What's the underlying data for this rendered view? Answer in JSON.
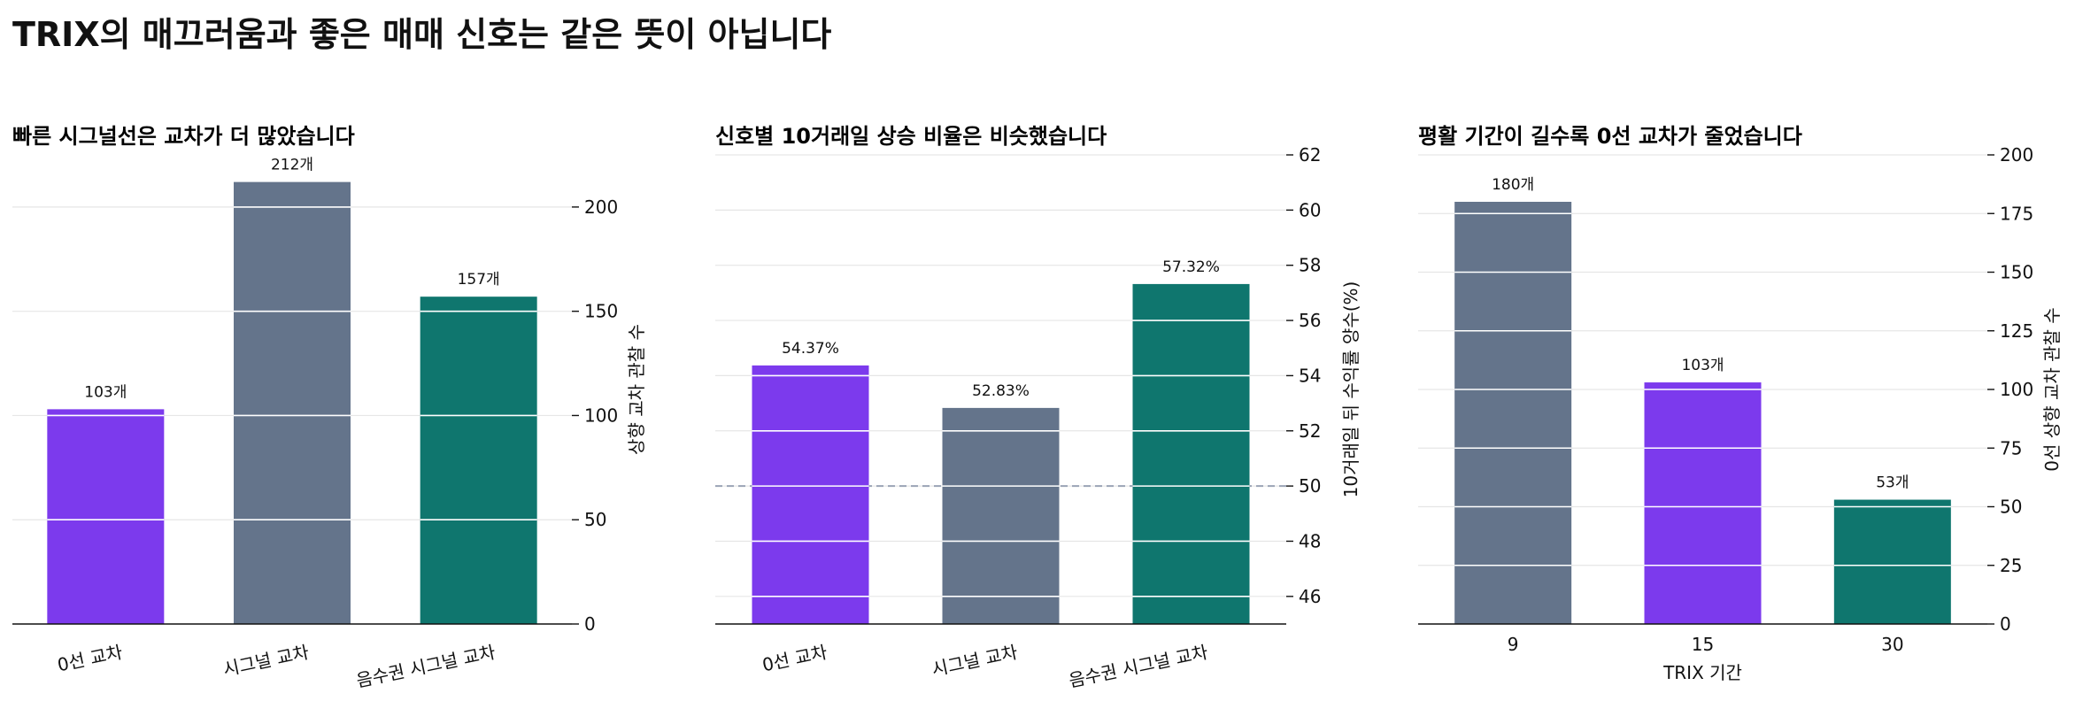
{
  "title": "TRIX의 매끄러움과 좋은 매매 신호는 같은 뜻이 아닙니다",
  "colors": {
    "purple": "#7c3aed",
    "slate": "#64748b",
    "teal": "#0f766e",
    "grid": "#e6e6e6",
    "reference": "#9aa3b5"
  },
  "chart_data": [
    {
      "type": "bar",
      "title": "빠른 시그널선은 교차가 더 많았습니다",
      "categories": [
        "0선 교차",
        "시그널 교차",
        "음수권 시그널 교차"
      ],
      "values": [
        103,
        212,
        157
      ],
      "value_labels": [
        "103개",
        "212개",
        "157개"
      ],
      "colors": [
        "#7c3aed",
        "#64748b",
        "#0f766e"
      ],
      "ylabel": "상향 교차 관찰 수",
      "xlabel": "",
      "ylim": [
        0,
        225
      ],
      "yticks": [
        0,
        50,
        100,
        150,
        200
      ],
      "y_axis_side": "right",
      "grid": true,
      "rotated_categories": true
    },
    {
      "type": "bar",
      "title": "신호별 10거래일 상승 비율은 비슷했습니다",
      "categories": [
        "0선 교차",
        "시그널 교차",
        "음수권 시그널 교차"
      ],
      "values": [
        54.37,
        52.83,
        57.32
      ],
      "value_labels": [
        "54.37%",
        "52.83%",
        "57.32%"
      ],
      "colors": [
        "#7c3aed",
        "#64748b",
        "#0f766e"
      ],
      "ylabel": "10거래일 뒤 수익률 양수(%)",
      "xlabel": "",
      "ylim": [
        45,
        62
      ],
      "yticks": [
        46,
        48,
        50,
        52,
        54,
        56,
        58,
        60,
        62
      ],
      "reference_line": 50,
      "y_axis_side": "right",
      "grid": true,
      "rotated_categories": true
    },
    {
      "type": "bar",
      "title": "평활 기간이 길수록 0선 교차가 줄었습니다",
      "categories": [
        "9",
        "15",
        "30"
      ],
      "values": [
        180,
        103,
        53
      ],
      "value_labels": [
        "180개",
        "103개",
        "53개"
      ],
      "colors": [
        "#64748b",
        "#7c3aed",
        "#0f766e"
      ],
      "ylabel": "0선 상향 교차 관찰 수",
      "xlabel": "TRIX 기간",
      "ylim": [
        0,
        200
      ],
      "yticks": [
        0,
        25,
        50,
        75,
        100,
        125,
        150,
        175,
        200
      ],
      "y_axis_side": "right",
      "grid": true,
      "rotated_categories": false
    }
  ]
}
